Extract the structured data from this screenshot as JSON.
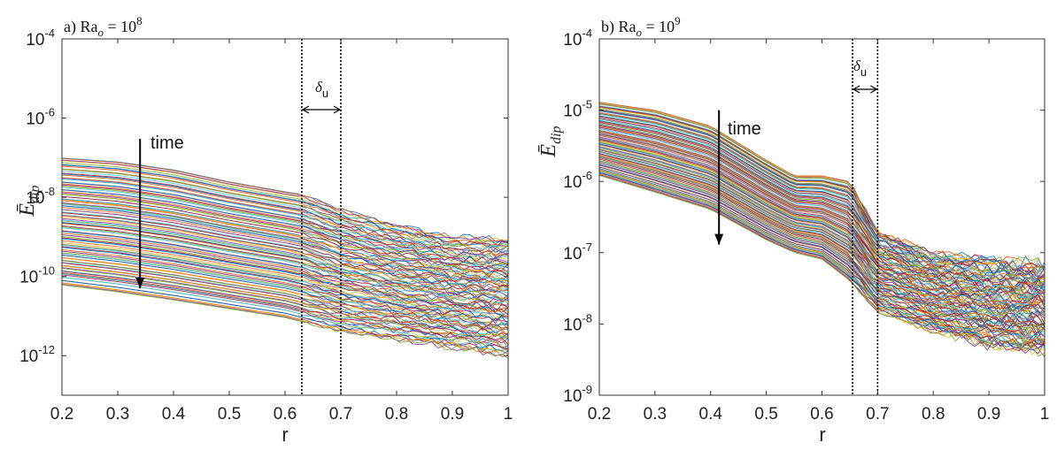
{
  "chart_data": [
    {
      "type": "line",
      "title": "a) Ra_o = 10^8",
      "title_parts": {
        "prefix": "a) Ra",
        "sub": "o",
        "eq": " = 10",
        "sup": "8"
      },
      "xlabel": "r",
      "ylabel": "Ē_dip",
      "ylabel_parts": {
        "main": "Ē",
        "sub": "dip"
      },
      "xlim": [
        0.2,
        1.0
      ],
      "ylim": [
        1e-13,
        0.0001
      ],
      "yscale": "log",
      "x_ticks": [
        "0.2",
        "0.3",
        "0.4",
        "0.5",
        "0.6",
        "0.7",
        "0.8",
        "0.9",
        "1"
      ],
      "y_ticks": [
        {
          "base": "10",
          "exp": "-4"
        },
        {
          "base": "10",
          "exp": "-6"
        },
        {
          "base": "10",
          "exp": "-8"
        },
        {
          "base": "10",
          "exp": "-10"
        },
        {
          "base": "10",
          "exp": "-12"
        }
      ],
      "y_tick_values": [
        0.0001,
        1e-06,
        1e-08,
        1e-10,
        1e-12
      ],
      "grid": false,
      "annotation": "time",
      "arrow": {
        "x": 0.34,
        "y_from": 3e-07,
        "y_to": 5e-11
      },
      "delta_label": {
        "main": "δ",
        "sub": "u"
      },
      "vlines": [
        0.63,
        0.7
      ],
      "series_envelope": {
        "x": [
          0.2,
          0.3,
          0.4,
          0.5,
          0.6,
          0.63,
          0.7,
          0.8,
          0.9,
          1.0
        ],
        "upper": [
          1e-07,
          8e-08,
          5e-08,
          2.5e-08,
          1.4e-08,
          1.2e-08,
          5e-09,
          2e-09,
          1e-09,
          9e-10
        ],
        "lower": [
          6e-11,
          4e-11,
          2.5e-11,
          1.5e-11,
          9e-12,
          7e-12,
          4e-12,
          2.5e-12,
          1.6e-12,
          1e-12
        ]
      }
    },
    {
      "type": "line",
      "title": "b) Ra_o = 10^9",
      "title_parts": {
        "prefix": "b) Ra",
        "sub": "o",
        "eq": " = 10",
        "sup": "9"
      },
      "xlabel": "r",
      "ylabel": "Ē_dip",
      "ylabel_parts": {
        "main": "Ē",
        "sub": "dip"
      },
      "xlim": [
        0.2,
        1.0
      ],
      "ylim": [
        1e-09,
        0.0001
      ],
      "yscale": "log",
      "x_ticks": [
        "0.2",
        "0.3",
        "0.4",
        "0.5",
        "0.6",
        "0.7",
        "0.8",
        "0.9",
        "1"
      ],
      "y_ticks": [
        {
          "base": "10",
          "exp": "-4"
        },
        {
          "base": "10",
          "exp": "-5"
        },
        {
          "base": "10",
          "exp": "-6"
        },
        {
          "base": "10",
          "exp": "-7"
        },
        {
          "base": "10",
          "exp": "-8"
        },
        {
          "base": "10",
          "exp": "-9"
        }
      ],
      "y_tick_values": [
        0.0001,
        1e-05,
        1e-06,
        1e-07,
        1e-08,
        1e-09
      ],
      "grid": false,
      "annotation": "time",
      "arrow": {
        "x": 0.415,
        "y_from": 1e-05,
        "y_to": 1.3e-07
      },
      "delta_label": {
        "main": "δ",
        "sub": "u"
      },
      "vlines": [
        0.655,
        0.7
      ],
      "series_envelope": {
        "x": [
          0.2,
          0.3,
          0.4,
          0.5,
          0.55,
          0.6,
          0.65,
          0.7,
          0.8,
          0.9,
          1.0
        ],
        "upper": [
          1.3e-05,
          1e-05,
          6e-06,
          2e-06,
          1.2e-06,
          1.2e-06,
          1e-06,
          2e-07,
          1e-07,
          8e-08,
          7e-08
        ],
        "lower": [
          1.2e-06,
          7e-07,
          4e-07,
          1.5e-07,
          1e-07,
          8e-08,
          4e-08,
          1.5e-08,
          8e-09,
          5e-09,
          4e-09
        ]
      }
    }
  ]
}
